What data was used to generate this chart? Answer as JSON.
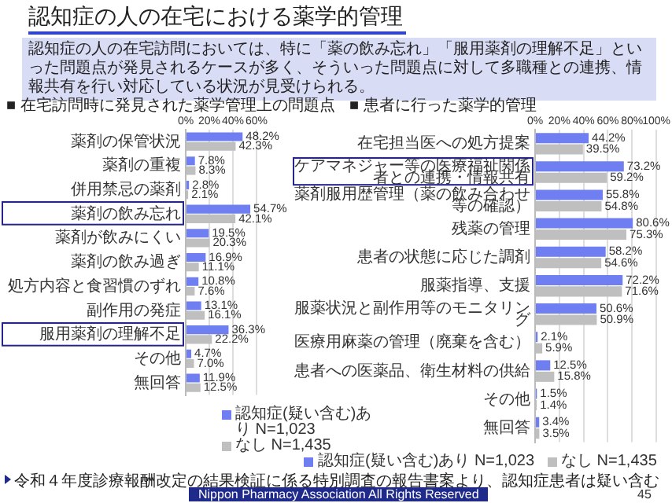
{
  "chart_data": [
    {
      "type": "other",
      "title": "認知症の人の在宅における薬学的管理",
      "subtitle": "認知症の人の在宅訪問においては、特に「薬の飲み忘れ」「服用薬剤の理解不足」といった問題点が発見されるケースが多く、そういった問題点に対して多職種との連携、情報共有を行い対応している状況が見受けられる。",
      "annotations": [
        "令和４年度診療報酬改定の結果検証に係る特別調査の報告書案より、認知症患者は疑い含む",
        "Nippon Pharmacy Association All Rights Reserved",
        "45"
      ]
    },
    {
      "type": "bar",
      "orientation": "horizontal",
      "title": "■ 在宅訪問時に発見された薬学管理上の問題点",
      "categories": [
        "薬剤の保管状況",
        "薬剤の重複",
        "併用禁忌の薬剤",
        "薬剤の飲み忘れ",
        "薬剤が飲みにくい",
        "薬剤の飲み過ぎ",
        "処方内容と食習慣のずれ",
        "副作用の発症",
        "服用薬剤の理解不足",
        "その他",
        "無回答"
      ],
      "series": [
        {
          "name": "認知症(疑い含む)あり N=1,023",
          "color": "#6f7ff2",
          "values": [
            48.2,
            7.8,
            2.8,
            54.7,
            19.5,
            16.9,
            10.8,
            13.1,
            36.3,
            4.7,
            11.9
          ],
          "value_labels": [
            "48.2%",
            "7.8%",
            "2.8%",
            "54.7%",
            "19.5%",
            "16.9%",
            "10.8%",
            "13.1%",
            "36.3%",
            "4.7%",
            "11.9%"
          ]
        },
        {
          "name": "なし N=1,435",
          "color": "#bfbfbf",
          "values": [
            42.3,
            8.3,
            2.1,
            42.1,
            20.3,
            11.1,
            7.6,
            16.1,
            22.2,
            7.0,
            12.5
          ],
          "value_labels": [
            "42.3%",
            "8.3%",
            "2.1%",
            "42.1%",
            "20.3%",
            "11.1%",
            "7.6%",
            "16.1%",
            "22.2%",
            "7.0%",
            "12.5%"
          ]
        }
      ],
      "xlim": [
        0,
        60
      ],
      "xticks": [
        {
          "value": 0,
          "label": "0%"
        },
        {
          "value": 20,
          "label": "20%"
        },
        {
          "value": 40,
          "label": "40%"
        },
        {
          "value": 60,
          "label": "60%"
        }
      ],
      "grid": "x",
      "legend": "bottom right"
    },
    {
      "type": "bar",
      "orientation": "horizontal",
      "title": "■ 患者に行った薬学的管理",
      "categories": [
        "在宅担当医への処方提案",
        "ケアマネジャー等の医療福祉関係者との連携・情報共有",
        "薬剤服用歴管理（薬の飲み合わせ等の確認）",
        "残薬の管理",
        "患者の状態に応じた調剤",
        "服薬指導、支援",
        "服薬状況と副作用等のモニタリング",
        "医療用麻薬の管理（廃棄を含む）",
        "患者への医薬品、衛生材料の供給",
        "その他",
        "無回答"
      ],
      "series": [
        {
          "name": "認知症(疑い含む)あり N=1,023",
          "color": "#6f7ff2",
          "values": [
            44.2,
            73.2,
            55.8,
            80.6,
            58.2,
            72.2,
            50.6,
            2.1,
            12.5,
            1.5,
            3.4
          ],
          "value_labels": [
            "44.2%",
            "73.2%",
            "55.8%",
            "80.6%",
            "58.2%",
            "72.2%",
            "50.6%",
            "2.1%",
            "12.5%",
            "1.5%",
            "3.4%"
          ]
        },
        {
          "name": "なし N=1,435",
          "color": "#bfbfbf",
          "values": [
            39.5,
            59.2,
            54.8,
            75.3,
            54.6,
            71.6,
            50.9,
            5.9,
            15.8,
            1.4,
            3.5
          ],
          "value_labels": [
            "39.5%",
            "59.2%",
            "54.8%",
            "75.3%",
            "54.6%",
            "71.6%",
            "50.9%",
            "5.9%",
            "15.8%",
            "1.4%",
            "3.5%"
          ]
        }
      ],
      "xlim": [
        0,
        100
      ],
      "xticks": [
        {
          "value": 0,
          "label": "0%"
        },
        {
          "value": 20,
          "label": "20%"
        },
        {
          "value": 40,
          "label": "40%"
        },
        {
          "value": 60,
          "label": "60%"
        },
        {
          "value": 80,
          "label": "80%"
        },
        {
          "value": 100,
          "label": "100%"
        }
      ],
      "grid": "x",
      "legend": "bottom"
    }
  ]
}
